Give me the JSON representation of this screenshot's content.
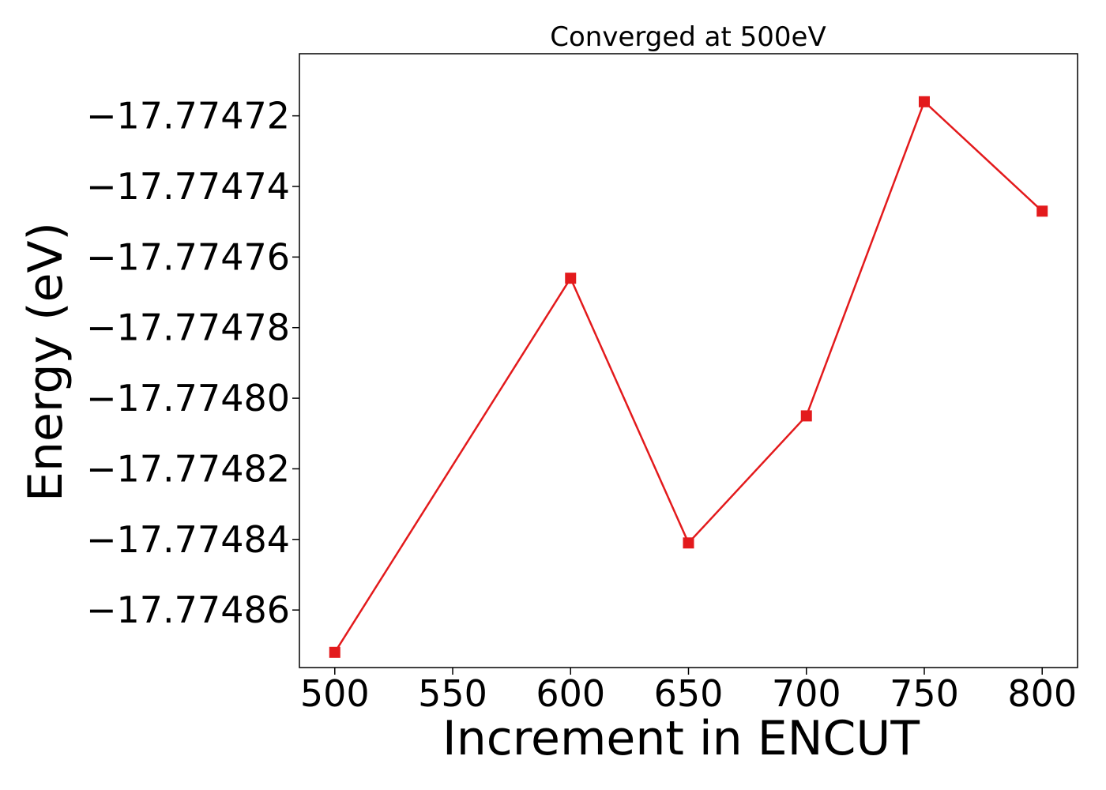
{
  "chart_data": {
    "type": "line",
    "title": "Converged at 500eV",
    "xlabel": "Increment in ENCUT",
    "ylabel": "Energy (eV)",
    "x": [
      500,
      600,
      650,
      700,
      750,
      800
    ],
    "series": [
      {
        "values": [
          -17.774872,
          -17.774766,
          -17.774841,
          -17.774805,
          -17.774716,
          -17.774747
        ],
        "color": "#e31a1c",
        "marker": "square"
      }
    ],
    "xticks": [
      500,
      550,
      600,
      650,
      700,
      750,
      800
    ],
    "xtick_labels": [
      "500",
      "550",
      "600",
      "650",
      "700",
      "750",
      "800"
    ],
    "yticks": [
      -17.77472,
      -17.77474,
      -17.77476,
      -17.77478,
      -17.7748,
      -17.77482,
      -17.77484,
      -17.77486
    ],
    "ytick_labels": [
      "−17.77472",
      "−17.77474",
      "−17.77476",
      "−17.77478",
      "−17.77480",
      "−17.77482",
      "−17.77484",
      "−17.77486"
    ],
    "xlim": [
      485,
      815
    ],
    "ylim": [
      -17.7748763,
      -17.7747024
    ],
    "grid": false,
    "legend": false
  }
}
